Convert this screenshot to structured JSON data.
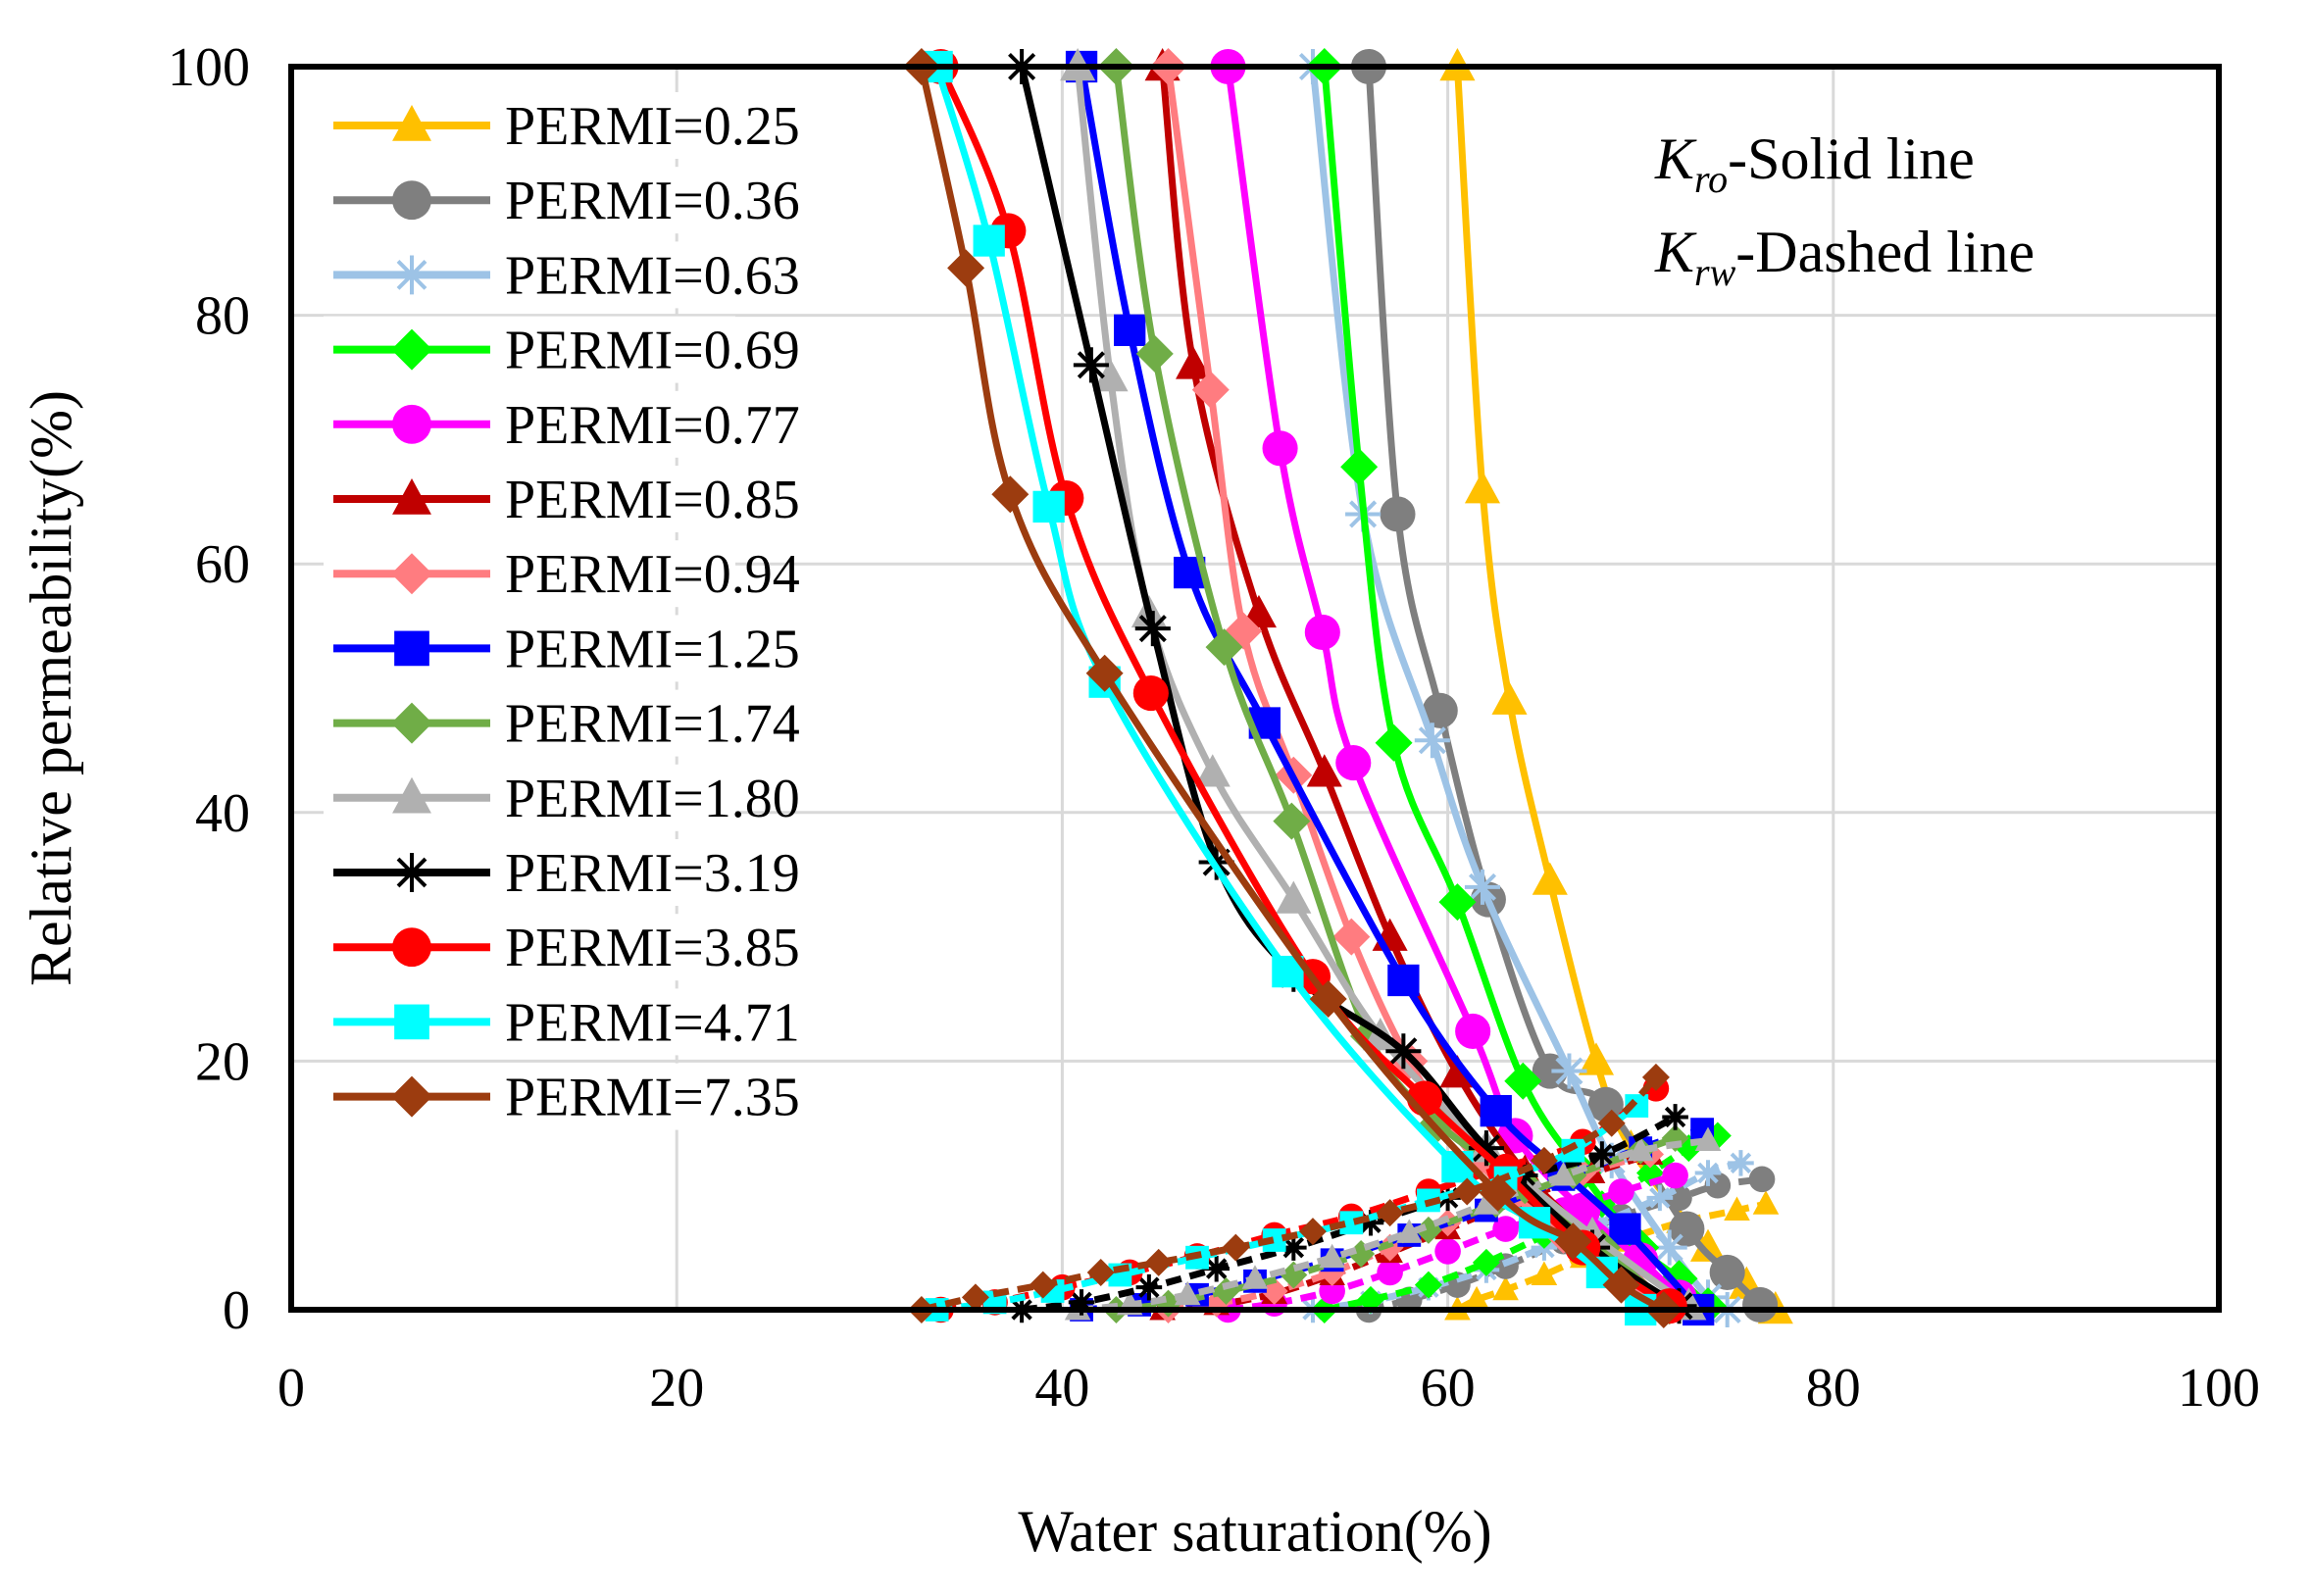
{
  "chart_data": {
    "type": "line",
    "xlabel": "Water saturation(%)",
    "ylabel": "Relative permeability(%)",
    "xlim": [
      0,
      100
    ],
    "ylim": [
      0,
      100
    ],
    "xticks": [
      0,
      20,
      40,
      60,
      80,
      100
    ],
    "yticks": [
      0,
      20,
      40,
      60,
      80,
      100
    ],
    "grid": true,
    "legend_position": "top-left",
    "annotation": {
      "kro_symbol": "K",
      "kro_sub": "ro",
      "kro_text": "-Solid line",
      "krw_symbol": "K",
      "krw_sub": "rw",
      "krw_text": "-Dashed line"
    },
    "series": [
      {
        "name": "PERMI=0.25",
        "color": "#FFC000",
        "marker": "triangle",
        "kro": [
          [
            60.5,
            100
          ],
          [
            61.8,
            66
          ],
          [
            63.2,
            49
          ],
          [
            65.3,
            34.5
          ],
          [
            67.7,
            20
          ],
          [
            69.5,
            13
          ],
          [
            73.5,
            5
          ],
          [
            75.5,
            2
          ],
          [
            77,
            0
          ]
        ],
        "krw": [
          [
            60.5,
            0
          ],
          [
            61.5,
            0.8
          ],
          [
            63,
            1.6
          ],
          [
            65,
            2.8
          ],
          [
            67,
            4.2
          ],
          [
            69,
            5.5
          ],
          [
            72,
            7
          ],
          [
            75,
            8
          ],
          [
            76.5,
            8.5
          ]
        ]
      },
      {
        "name": "PERMI=0.36",
        "color": "#7F7F7F",
        "marker": "circle",
        "kro": [
          [
            55.9,
            100
          ],
          [
            57.4,
            64
          ],
          [
            59.6,
            48.2
          ],
          [
            62.1,
            33
          ],
          [
            65.3,
            19.2
          ],
          [
            68.2,
            16.5
          ],
          [
            72.4,
            6.5
          ],
          [
            74.5,
            3
          ],
          [
            76.2,
            0.4
          ]
        ],
        "krw": [
          [
            55.9,
            0
          ],
          [
            58,
            0.8
          ],
          [
            60.5,
            2
          ],
          [
            63,
            3.5
          ],
          [
            66,
            5.5
          ],
          [
            69,
            7.5
          ],
          [
            72,
            9
          ],
          [
            74,
            10
          ],
          [
            76.3,
            10.5
          ]
        ]
      },
      {
        "name": "PERMI=0.63",
        "color": "#9DC3E6",
        "marker": "asterisk",
        "kro": [
          [
            53,
            100
          ],
          [
            55.6,
            64
          ],
          [
            59.2,
            45.8
          ],
          [
            61.8,
            34
          ],
          [
            66.3,
            19.2
          ],
          [
            68.5,
            12
          ],
          [
            71.5,
            5
          ],
          [
            73.5,
            1
          ],
          [
            74.5,
            0
          ]
        ],
        "krw": [
          [
            53,
            0
          ],
          [
            56,
            0.7
          ],
          [
            59,
            1.8
          ],
          [
            62,
            3.2
          ],
          [
            65,
            5
          ],
          [
            68,
            7
          ],
          [
            71,
            9
          ],
          [
            73.5,
            11
          ],
          [
            75.2,
            11.8
          ]
        ]
      },
      {
        "name": "PERMI=0.69",
        "color": "#00FF00",
        "marker": "diamond",
        "kro": [
          [
            53.6,
            100
          ],
          [
            55.4,
            67.8
          ],
          [
            57.2,
            45.6
          ],
          [
            60.5,
            32.8
          ],
          [
            63.9,
            18.4
          ],
          [
            67,
            11
          ],
          [
            70,
            5
          ],
          [
            72,
            2.5
          ],
          [
            73.5,
            0.3
          ]
        ],
        "krw": [
          [
            53.6,
            0
          ],
          [
            56,
            0.8
          ],
          [
            59,
            2
          ],
          [
            62,
            3.8
          ],
          [
            65,
            6
          ],
          [
            68,
            8.5
          ],
          [
            70.5,
            11
          ],
          [
            72.5,
            13
          ],
          [
            74,
            14
          ]
        ]
      },
      {
        "name": "PERMI=0.77",
        "color": "#FF00FF",
        "marker": "circle",
        "kro": [
          [
            48.6,
            100
          ],
          [
            51.3,
            69.3
          ],
          [
            53.5,
            54.5
          ],
          [
            55.1,
            44
          ],
          [
            61.3,
            22.4
          ],
          [
            63.5,
            14
          ],
          [
            67,
            8
          ],
          [
            70,
            4
          ],
          [
            72,
            1
          ]
        ],
        "krw": [
          [
            48.6,
            0
          ],
          [
            51,
            0.5
          ],
          [
            54,
            1.5
          ],
          [
            57,
            3
          ],
          [
            60,
            4.7
          ],
          [
            63,
            6.5
          ],
          [
            66,
            8
          ],
          [
            69,
            9.5
          ],
          [
            71.8,
            10.8
          ]
        ]
      },
      {
        "name": "PERMI=0.85",
        "color": "#C00000",
        "marker": "triangle",
        "kro": [
          [
            45.2,
            100
          ],
          [
            46.8,
            76
          ],
          [
            50.2,
            56
          ],
          [
            53.6,
            43.2
          ],
          [
            57,
            30
          ],
          [
            60.5,
            19
          ],
          [
            64,
            11
          ],
          [
            68,
            5
          ],
          [
            71.2,
            0.5
          ]
        ],
        "krw": [
          [
            45.2,
            0
          ],
          [
            48,
            0.4
          ],
          [
            51,
            1.3
          ],
          [
            54,
            2.8
          ],
          [
            57,
            4.6
          ],
          [
            60,
            6.5
          ],
          [
            64,
            9
          ],
          [
            67.5,
            11
          ],
          [
            70.5,
            12.5
          ]
        ]
      },
      {
        "name": "PERMI=0.94",
        "color": "#FF7C80",
        "marker": "diamond",
        "kro": [
          [
            45.5,
            100
          ],
          [
            47.7,
            74
          ],
          [
            49.4,
            54.6
          ],
          [
            52,
            43
          ],
          [
            55,
            30
          ],
          [
            58,
            20
          ],
          [
            61.5,
            12
          ],
          [
            66,
            6
          ],
          [
            70,
            1.3
          ]
        ],
        "krw": [
          [
            45.5,
            0
          ],
          [
            48,
            0.5
          ],
          [
            51,
            1.5
          ],
          [
            54,
            3
          ],
          [
            57,
            5
          ],
          [
            60,
            7
          ],
          [
            63.5,
            9
          ],
          [
            67,
            11
          ],
          [
            70.5,
            12.5
          ]
        ]
      },
      {
        "name": "PERMI=1.25",
        "color": "#0000FF",
        "marker": "square",
        "kro": [
          [
            41,
            100
          ],
          [
            43.5,
            78.8
          ],
          [
            46.6,
            59.3
          ],
          [
            50.5,
            47.2
          ],
          [
            57.7,
            26.5
          ],
          [
            62.5,
            16
          ],
          [
            66,
            11
          ],
          [
            69.2,
            6.5
          ],
          [
            73,
            0
          ]
        ],
        "krw": [
          [
            41,
            0
          ],
          [
            44,
            0.4
          ],
          [
            47,
            1.2
          ],
          [
            50,
            2.3
          ],
          [
            54,
            4
          ],
          [
            58,
            6
          ],
          [
            62,
            8
          ],
          [
            66,
            10.5
          ],
          [
            70,
            13
          ],
          [
            73.2,
            14.5
          ]
        ]
      },
      {
        "name": "PERMI=1.74",
        "color": "#70AD47",
        "marker": "diamond",
        "kro": [
          [
            42.8,
            100
          ],
          [
            44.8,
            76.9
          ],
          [
            48.4,
            53.3
          ],
          [
            51.9,
            39.3
          ],
          [
            55.9,
            22
          ],
          [
            59.5,
            15
          ],
          [
            64,
            10
          ],
          [
            68,
            5
          ],
          [
            71.5,
            0.3
          ]
        ],
        "krw": [
          [
            42.8,
            0
          ],
          [
            45.5,
            0.5
          ],
          [
            48.5,
            1.5
          ],
          [
            52,
            2.8
          ],
          [
            55.5,
            4.5
          ],
          [
            59,
            6.4
          ],
          [
            62.5,
            8.5
          ],
          [
            66.5,
            10.8
          ],
          [
            70,
            12.8
          ],
          [
            71.8,
            13.8
          ]
        ]
      },
      {
        "name": "PERMI=1.80",
        "color": "#B0B0B0",
        "marker": "triangle",
        "kro": [
          [
            40.8,
            100
          ],
          [
            42.5,
            75
          ],
          [
            44.5,
            56
          ],
          [
            47.8,
            43.2
          ],
          [
            52,
            33
          ],
          [
            56.5,
            22
          ],
          [
            62,
            13
          ],
          [
            67.5,
            6
          ],
          [
            72.5,
            0.3
          ]
        ],
        "krw": [
          [
            40.8,
            0
          ],
          [
            43.5,
            0.4
          ],
          [
            46.5,
            1.2
          ],
          [
            50,
            2.5
          ],
          [
            54,
            4.2
          ],
          [
            58,
            6.2
          ],
          [
            62,
            8.5
          ],
          [
            66,
            10.8
          ],
          [
            70,
            12.8
          ],
          [
            73.5,
            13.6
          ]
        ]
      },
      {
        "name": "PERMI=3.19",
        "color": "#000000",
        "marker": "asterisk",
        "kro": [
          [
            37.9,
            100
          ],
          [
            41.5,
            76
          ],
          [
            44.7,
            54.8
          ],
          [
            48,
            36
          ],
          [
            52,
            27
          ],
          [
            57.7,
            20.8
          ],
          [
            62,
            13
          ],
          [
            67.5,
            5
          ],
          [
            72,
            0.3
          ]
        ],
        "krw": [
          [
            37.9,
            0
          ],
          [
            41,
            0.6
          ],
          [
            44.5,
            1.8
          ],
          [
            48,
            3.3
          ],
          [
            52,
            5
          ],
          [
            56,
            7
          ],
          [
            60,
            9
          ],
          [
            64,
            10.8
          ],
          [
            68,
            12.5
          ],
          [
            71.8,
            15.5
          ]
        ]
      },
      {
        "name": "PERMI=3.85",
        "color": "#FF0000",
        "marker": "circle",
        "kro": [
          [
            33.7,
            100
          ],
          [
            37.2,
            86.8
          ],
          [
            40.2,
            65.3
          ],
          [
            44.6,
            49.6
          ],
          [
            53,
            26.8
          ],
          [
            58.8,
            17
          ],
          [
            63,
            11
          ],
          [
            67,
            5
          ],
          [
            71.5,
            0.3
          ]
        ],
        "krw": [
          [
            33.7,
            0
          ],
          [
            36.5,
            0.6
          ],
          [
            40,
            1.8
          ],
          [
            43.5,
            3
          ],
          [
            47,
            4.3
          ],
          [
            51,
            6
          ],
          [
            55,
            7.5
          ],
          [
            59,
            9.5
          ],
          [
            63,
            11.5
          ],
          [
            67,
            13.5
          ],
          [
            70.8,
            17.8
          ]
        ]
      },
      {
        "name": "PERMI=4.71",
        "color": "#00FFFF",
        "marker": "square",
        "kro": [
          [
            33.5,
            100
          ],
          [
            36.2,
            86
          ],
          [
            39.3,
            64.6
          ],
          [
            42.2,
            50.5
          ],
          [
            51.7,
            27.2
          ],
          [
            60.5,
            11.5
          ],
          [
            64.5,
            7
          ],
          [
            68,
            3
          ],
          [
            70,
            0
          ]
        ],
        "krw": [
          [
            33.5,
            0
          ],
          [
            36.5,
            0.6
          ],
          [
            39.5,
            1.5
          ],
          [
            43,
            2.8
          ],
          [
            47,
            4.2
          ],
          [
            51,
            5.6
          ],
          [
            55,
            7
          ],
          [
            59,
            8.8
          ],
          [
            63,
            10.6
          ],
          [
            66.5,
            12.8
          ],
          [
            69.8,
            16.4
          ]
        ]
      },
      {
        "name": "PERMI=7.35",
        "color": "#9C3C0F",
        "marker": "diamond",
        "kro": [
          [
            32.7,
            100
          ],
          [
            35,
            83.8
          ],
          [
            37.3,
            65.6
          ],
          [
            42.2,
            51.2
          ],
          [
            53.8,
            25
          ],
          [
            62.6,
            9.4
          ],
          [
            66.5,
            5.5
          ],
          [
            69,
            2
          ],
          [
            71.2,
            0
          ]
        ],
        "krw": [
          [
            32.7,
            0
          ],
          [
            35.5,
            1
          ],
          [
            39,
            2
          ],
          [
            42,
            3
          ],
          [
            45,
            3.8
          ],
          [
            49,
            5
          ],
          [
            53,
            6.3
          ],
          [
            57,
            7.8
          ],
          [
            61,
            9.5
          ],
          [
            65,
            12
          ],
          [
            68.5,
            15
          ],
          [
            70.8,
            18.7
          ]
        ]
      }
    ]
  }
}
